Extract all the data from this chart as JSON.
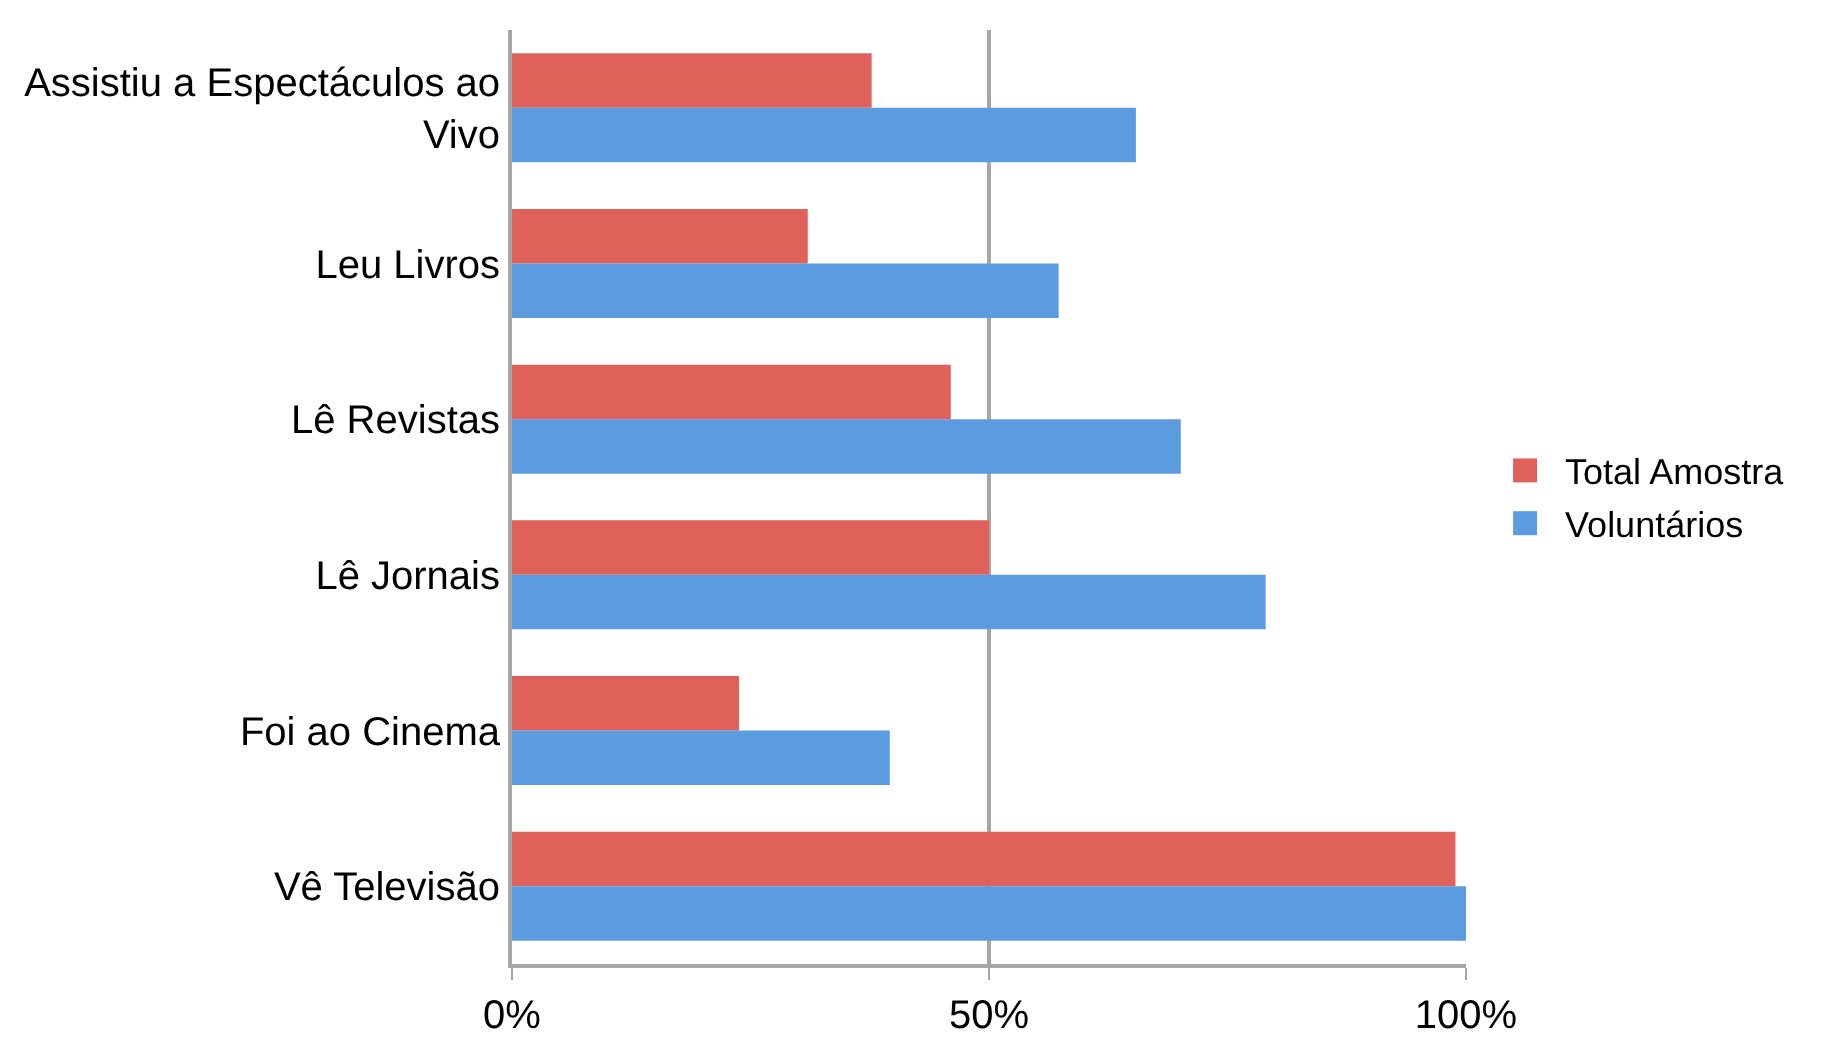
{
  "chart_data": {
    "type": "bar",
    "orientation": "horizontal",
    "categories": [
      "Assistiu a Espectáculos ao Vivo",
      "Leu Livros",
      "Lê Revistas",
      "Lê Jornais",
      "Foi ao Cinema",
      "Vê Televisão"
    ],
    "series": [
      {
        "name": "Total Amostra",
        "color": "#e0605a",
        "values": [
          37.7,
          31.0,
          46.0,
          50.0,
          23.8,
          98.9
        ]
      },
      {
        "name": "Voluntários",
        "color": "#5b9be0",
        "values": [
          65.4,
          57.3,
          70.1,
          79.0,
          39.6,
          100.0
        ]
      }
    ],
    "xlim": [
      0,
      100
    ],
    "xticks": [
      {
        "value": 0,
        "label": "0%"
      },
      {
        "value": 50,
        "label": "50%"
      },
      {
        "value": 100,
        "label": "100%"
      }
    ],
    "grid": "x",
    "legend": "right"
  }
}
